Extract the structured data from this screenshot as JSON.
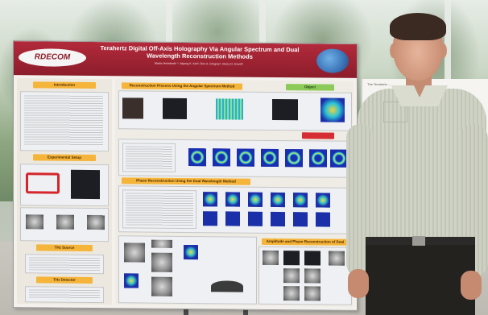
{
  "poster": {
    "org_logo": "RDECOM",
    "title": "Terahertz Digital Off-Axis Holography Via Angular Spectrum and Dual Wavelength Reconstruction Methods",
    "authors": "Martin Heimbeck¹·², Myung K. Kim³, Don A. Gregory², Henry O. Everitt¹",
    "sections": {
      "introduction": "Introduction",
      "experimental_setup": "Experimental Setup",
      "angular_spectrum": "Reconstruction Process Using the Angular Spectrum Method",
      "phase_recon": "Phase Reconstruction Using the Dual Wavelength Method",
      "dual_wavelength": "Amplitude and Phase Reconstruction of Dual Wavelength Method",
      "the_source": "THz Source",
      "the_detector": "THz Detector",
      "object_label": "Object"
    }
  },
  "side_card": {
    "title": "The Terahertz ..."
  },
  "colors": {
    "header_red": "#8c1d2b",
    "heading_orange": "#f5b43a",
    "heading_green": "#8ccb5a",
    "heading_red": "#d62d34"
  }
}
